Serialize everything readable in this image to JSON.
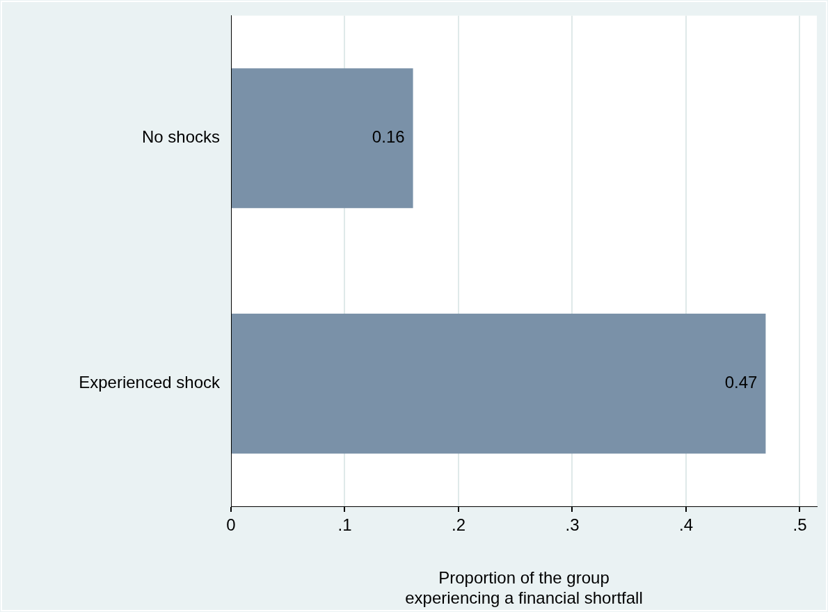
{
  "chart_data": {
    "type": "bar",
    "orientation": "horizontal",
    "categories": [
      "No shocks",
      "Experienced shock"
    ],
    "values": [
      0.16,
      0.47
    ],
    "color": "#7a91a8",
    "data_labels": true,
    "xlabel": "Proportion of the group\nexperiencing a financial shortfall",
    "xlim": [
      0,
      0.515
    ],
    "xticks": [
      0,
      {
        "value": 0.1,
        "label": ".1"
      },
      {
        "value": 0.2,
        "label": ".2"
      },
      {
        "value": 0.3,
        "label": ".3"
      },
      {
        "value": 0.4,
        "label": ".4"
      },
      {
        "value": 0.5,
        "label": ".5"
      }
    ],
    "grid": "x",
    "legend": false
  }
}
